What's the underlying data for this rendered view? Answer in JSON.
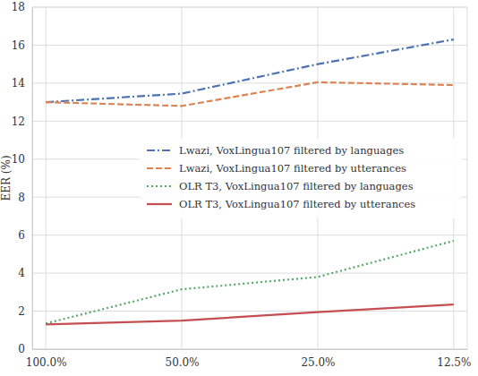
{
  "chart_data": {
    "type": "line",
    "categories": [
      "100.0%",
      "50.0%",
      "25.0%",
      "12.5%"
    ],
    "y_label": "EER (%)",
    "ylim": [
      0,
      18
    ],
    "yticks": [
      0,
      2,
      4,
      6,
      8,
      10,
      12,
      14,
      16,
      18
    ],
    "grid": true,
    "legend": "right",
    "series": [
      {
        "name": "Lwazi, VoxLingua107 filtered by languages",
        "color": "#4c72b0",
        "line_style": "dashdot",
        "values": [
          13.0,
          13.45,
          15.0,
          16.3
        ]
      },
      {
        "name": "Lwazi, VoxLingua107 filtered by utterances",
        "color": "#dd8452",
        "line_style": "dashed",
        "values": [
          13.0,
          12.8,
          14.05,
          13.9
        ]
      },
      {
        "name": "OLR T3, VoxLingua107 filtered by languages",
        "color": "#55a868",
        "line_style": "dotted",
        "values": [
          1.35,
          3.15,
          3.8,
          5.7
        ]
      },
      {
        "name": "OLR T3, VoxLingua107 filtered by utterances",
        "color": "#c44e52",
        "line_style": "solid",
        "values": [
          1.3,
          1.5,
          1.95,
          2.35
        ]
      }
    ]
  }
}
